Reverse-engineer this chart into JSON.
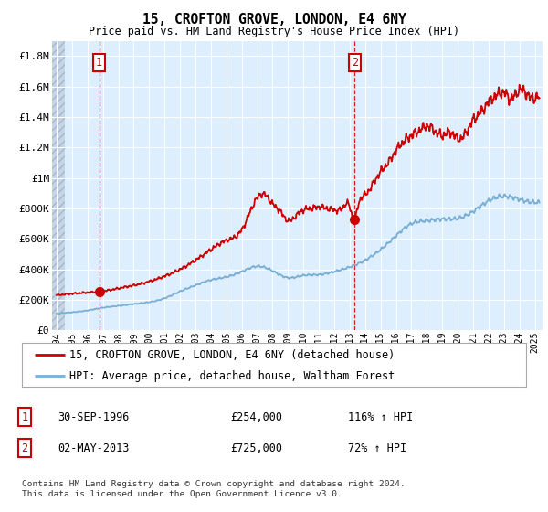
{
  "title": "15, CROFTON GROVE, LONDON, E4 6NY",
  "subtitle": "Price paid vs. HM Land Registry's House Price Index (HPI)",
  "ylabel_ticks": [
    "£0",
    "£200K",
    "£400K",
    "£600K",
    "£800K",
    "£1M",
    "£1.2M",
    "£1.4M",
    "£1.6M",
    "£1.8M"
  ],
  "ylabel_values": [
    0,
    200000,
    400000,
    600000,
    800000,
    1000000,
    1200000,
    1400000,
    1600000,
    1800000
  ],
  "ylim": [
    0,
    1900000
  ],
  "xlim_start": 1993.7,
  "xlim_end": 2025.5,
  "transaction1": {
    "date": 1996.75,
    "price": 254000,
    "label": "1",
    "hpi_pct": "116% ↑ HPI",
    "date_str": "30-SEP-1996"
  },
  "transaction2": {
    "date": 2013.33,
    "price": 725000,
    "label": "2",
    "hpi_pct": "72% ↑ HPI",
    "date_str": "02-MAY-2013"
  },
  "legend_line1": "15, CROFTON GROVE, LONDON, E4 6NY (detached house)",
  "legend_line2": "HPI: Average price, detached house, Waltham Forest",
  "footer": "Contains HM Land Registry data © Crown copyright and database right 2024.\nThis data is licensed under the Open Government Licence v3.0.",
  "red_line_color": "#cc0000",
  "blue_line_color": "#7aafd4",
  "background_color": "#ddeeff",
  "grid_color": "#ffffff",
  "annotation_box_color": "#cc0000",
  "dashed_line_color": "#cc0000"
}
